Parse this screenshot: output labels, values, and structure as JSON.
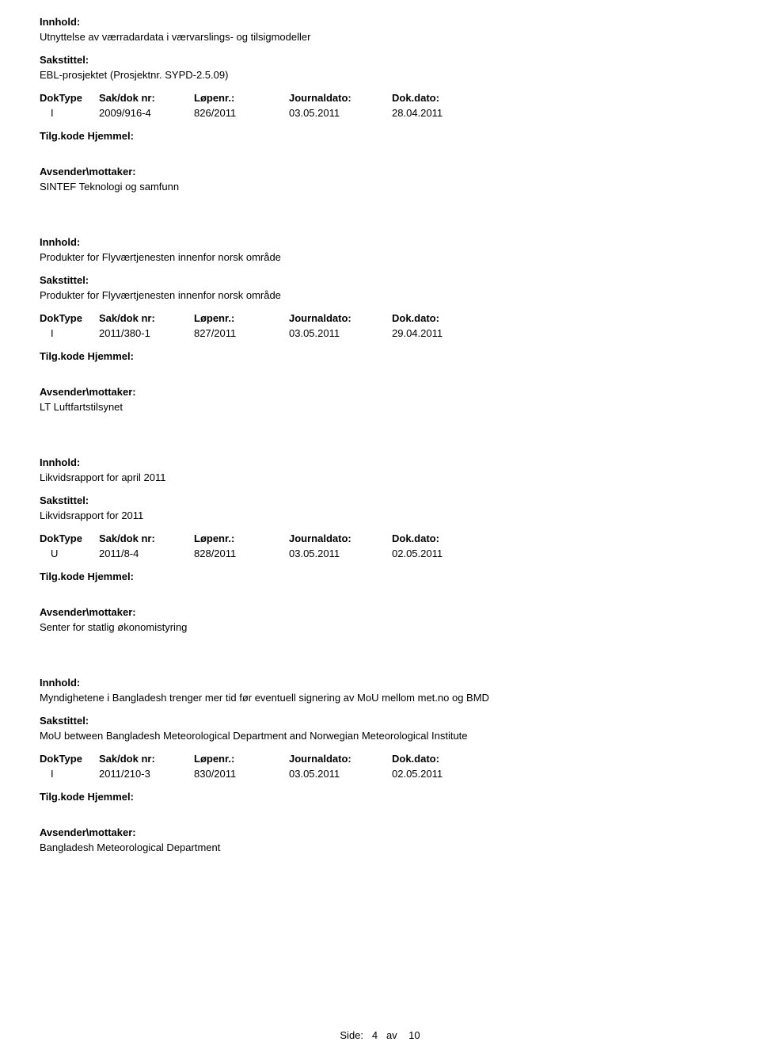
{
  "labels": {
    "innhold": "Innhold:",
    "sakstittel": "Sakstittel:",
    "doktype": "DokType",
    "saknr": "Sak/dok nr:",
    "lopenr": "Løpenr.:",
    "journaldato": "Journaldato:",
    "dokdato": "Dok.dato:",
    "tilgkode": "Tilg.kode",
    "hjemmel": "Hjemmel:",
    "avsender": "Avsender\\mottaker:"
  },
  "records": [
    {
      "innhold": "Utnyttelse av værradardata i værvarslings- og tilsigmodeller",
      "sakstittel": "EBL-prosjektet (Prosjektnr. SYPD-2.5.09)",
      "doktype": "I",
      "saknr": "2009/916-4",
      "lopenr": "826/2011",
      "journaldato": "03.05.2011",
      "dokdato": "28.04.2011",
      "avsender": "SINTEF Teknologi og samfunn"
    },
    {
      "innhold": "Produkter for Flyværtjenesten innenfor norsk område",
      "sakstittel": "Produkter for Flyværtjenesten innenfor norsk område",
      "doktype": "I",
      "saknr": "2011/380-1",
      "lopenr": "827/2011",
      "journaldato": "03.05.2011",
      "dokdato": "29.04.2011",
      "avsender": "LT Luftfartstilsynet"
    },
    {
      "innhold": "Likvidsrapport for april 2011",
      "sakstittel": "Likvidsrapport for 2011",
      "doktype": "U",
      "saknr": "2011/8-4",
      "lopenr": "828/2011",
      "journaldato": "03.05.2011",
      "dokdato": "02.05.2011",
      "avsender": "Senter for statlig økonomistyring"
    },
    {
      "innhold": "Myndighetene i Bangladesh trenger mer tid før eventuell signering av MoU mellom met.no og BMD",
      "sakstittel": "MoU between Bangladesh Meteorological Department and Norwegian Meteorological Institute",
      "doktype": "I",
      "saknr": "2011/210-3",
      "lopenr": "830/2011",
      "journaldato": "03.05.2011",
      "dokdato": "02.05.2011",
      "avsender": "Bangladesh Meteorological Department"
    }
  ],
  "footer": {
    "text": "Side:",
    "current": "4",
    "separator": "av",
    "total": "10"
  }
}
